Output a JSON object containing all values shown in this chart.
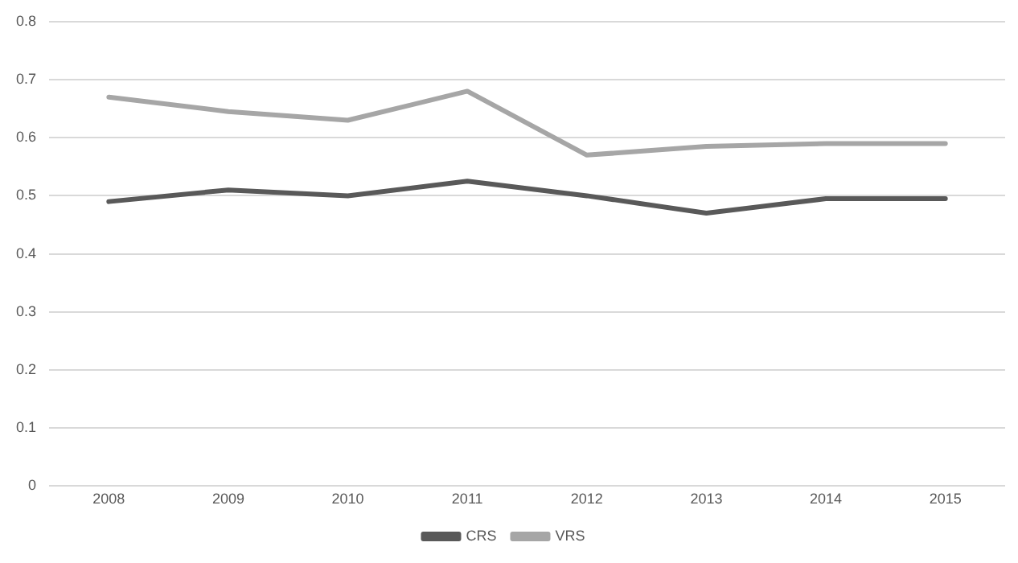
{
  "chart_data": {
    "type": "line",
    "categories": [
      "2008",
      "2009",
      "2010",
      "2011",
      "2012",
      "2013",
      "2014",
      "2015"
    ],
    "series": [
      {
        "name": "CRS",
        "color": "#595959",
        "values": [
          0.49,
          0.51,
          0.5,
          0.525,
          0.5,
          0.47,
          0.495,
          0.495
        ]
      },
      {
        "name": "VRS",
        "color": "#a6a6a6",
        "values": [
          0.67,
          0.645,
          0.63,
          0.68,
          0.57,
          0.585,
          0.59,
          0.59
        ]
      }
    ],
    "ylim": [
      0,
      0.8
    ],
    "yticks": [
      0,
      0.1,
      0.2,
      0.3,
      0.4,
      0.5,
      0.6,
      0.7,
      0.8
    ],
    "grid": "y",
    "legend": "bottom",
    "marker": "none",
    "line_style": "solid"
  }
}
